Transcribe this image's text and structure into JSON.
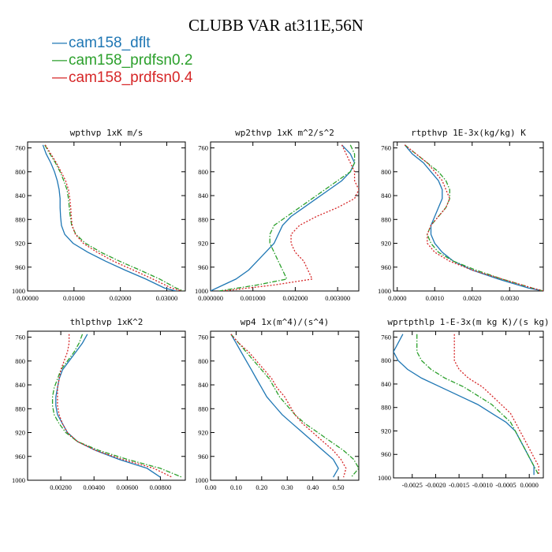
{
  "title": "CLUBB VAR at311E,56N",
  "legend": [
    {
      "label": "cam158_dflt",
      "color": "#1f77b4",
      "dash": "solid"
    },
    {
      "label": "cam158_prdfsn0.2",
      "color": "#2ca02c",
      "dash": "dashdot"
    },
    {
      "label": "cam158_prdfsn0.4",
      "color": "#d62728",
      "dash": "dot"
    }
  ],
  "chart_data": [
    {
      "type": "line",
      "title": "wpthvp  1xK m/s",
      "ylim": [
        1000,
        750
      ],
      "yticks": [
        "760",
        "800",
        "840",
        "880",
        "920",
        "960",
        "1000"
      ],
      "xlim": [
        0,
        0.034
      ],
      "xticks": [
        {
          "v": 0,
          "label": "0.00000"
        },
        {
          "v": 0.01,
          "label": "0.01000"
        },
        {
          "v": 0.02,
          "label": "0.02000"
        },
        {
          "v": 0.03,
          "label": "0.03000"
        }
      ],
      "y": [
        755,
        770,
        785,
        800,
        815,
        830,
        845,
        860,
        875,
        890,
        905,
        920,
        935,
        950,
        965,
        980,
        995,
        1000
      ],
      "series": [
        {
          "name": "cam158_dflt",
          "values": [
            0.0033,
            0.004,
            0.005,
            0.0058,
            0.0064,
            0.0068,
            0.007,
            0.007,
            0.0071,
            0.0073,
            0.008,
            0.0098,
            0.013,
            0.0168,
            0.021,
            0.0255,
            0.0295,
            0.032
          ]
        },
        {
          "name": "cam158_prdfsn0.2",
          "values": [
            0.0037,
            0.0048,
            0.006,
            0.007,
            0.0078,
            0.0085,
            0.0088,
            0.009,
            0.0092,
            0.0095,
            0.0104,
            0.0125,
            0.0158,
            0.0198,
            0.0242,
            0.0285,
            0.032,
            0.0336
          ]
        },
        {
          "name": "cam158_prdfsn0.4",
          "values": [
            0.0038,
            0.005,
            0.0062,
            0.0072,
            0.0082,
            0.0088,
            0.0091,
            0.0093,
            0.0094,
            0.0096,
            0.0103,
            0.012,
            0.015,
            0.0185,
            0.0228,
            0.027,
            0.031,
            0.0333
          ]
        }
      ]
    },
    {
      "type": "line",
      "title": "wp2thvp  1xK m^2/s^2",
      "ylim": [
        1000,
        750
      ],
      "yticks": [
        "760",
        "800",
        "840",
        "880",
        "920",
        "960",
        "1000"
      ],
      "xlim": [
        0,
        0.0035
      ],
      "xticks": [
        {
          "v": 0,
          "label": "0.000000"
        },
        {
          "v": 0.001,
          "label": "0.001000"
        },
        {
          "v": 0.002,
          "label": "0.002000"
        },
        {
          "v": 0.003,
          "label": "0.003000"
        }
      ],
      "y": [
        755,
        770,
        785,
        800,
        815,
        830,
        845,
        860,
        875,
        890,
        905,
        920,
        935,
        950,
        965,
        980,
        990,
        1000
      ],
      "series": [
        {
          "name": "cam158_dflt",
          "values": [
            0.0031,
            0.0033,
            0.0034,
            0.0033,
            0.0031,
            0.0028,
            0.0025,
            0.0022,
            0.0019,
            0.0017,
            0.0016,
            0.0015,
            0.0013,
            0.0011,
            0.0009,
            0.0006,
            0.0003,
            0.0
          ]
        },
        {
          "name": "cam158_prdfsn0.2",
          "values": [
            0.0033,
            0.0034,
            0.0034,
            0.0033,
            0.003,
            0.0027,
            0.0024,
            0.0021,
            0.0018,
            0.0015,
            0.0014,
            0.0014,
            0.0015,
            0.0016,
            0.0017,
            0.0018,
            0.0011,
            0.0002
          ]
        },
        {
          "name": "cam158_prdfsn0.4",
          "values": [
            0.0031,
            0.0032,
            0.0033,
            0.0034,
            0.0034,
            0.0035,
            0.0034,
            0.003,
            0.0025,
            0.0021,
            0.0019,
            0.0019,
            0.002,
            0.0022,
            0.0023,
            0.0024,
            0.0015,
            0.0003
          ]
        }
      ]
    },
    {
      "type": "line",
      "title": "rtpthvp  1E-3x(kg/kg) K",
      "ylim": [
        1000,
        750
      ],
      "yticks": [
        "760",
        "800",
        "840",
        "880",
        "920",
        "960",
        "1000"
      ],
      "xlim": [
        -0.0001,
        0.0039
      ],
      "xticks": [
        {
          "v": 0,
          "label": "0.0000"
        },
        {
          "v": 0.001,
          "label": "0.0010"
        },
        {
          "v": 0.002,
          "label": "0.0020"
        },
        {
          "v": 0.003,
          "label": "0.0030"
        }
      ],
      "y": [
        755,
        770,
        785,
        800,
        815,
        830,
        845,
        860,
        875,
        890,
        905,
        920,
        935,
        950,
        965,
        980,
        995,
        1000
      ],
      "series": [
        {
          "name": "cam158_dflt",
          "values": [
            0.0002,
            0.0004,
            0.0007,
            0.0009,
            0.0011,
            0.0012,
            0.0012,
            0.0011,
            0.001,
            0.0009,
            0.0009,
            0.001,
            0.0012,
            0.0015,
            0.002,
            0.0027,
            0.0035,
            0.0039
          ]
        },
        {
          "name": "cam158_prdfsn0.2",
          "values": [
            0.0002,
            0.0005,
            0.0008,
            0.0011,
            0.0013,
            0.0014,
            0.0014,
            0.0013,
            0.0011,
            0.0009,
            0.0008,
            0.0009,
            0.0011,
            0.0015,
            0.0021,
            0.0028,
            0.0036,
            0.0039
          ]
        },
        {
          "name": "cam158_prdfsn0.4",
          "values": [
            0.0002,
            0.0005,
            0.0008,
            0.001,
            0.0012,
            0.0013,
            0.0014,
            0.0013,
            0.0011,
            0.0009,
            0.0008,
            0.0008,
            0.001,
            0.0014,
            0.002,
            0.0028,
            0.0036,
            0.0039
          ]
        }
      ]
    },
    {
      "type": "line",
      "title": "thlpthvp  1xK^2",
      "ylim": [
        1000,
        750
      ],
      "yticks": [
        "760",
        "800",
        "840",
        "880",
        "920",
        "960",
        "1000"
      ],
      "xlim": [
        0,
        0.0095
      ],
      "xticks": [
        {
          "v": 0.002,
          "label": "0.00200"
        },
        {
          "v": 0.004,
          "label": "0.00400"
        },
        {
          "v": 0.006,
          "label": "0.00600"
        },
        {
          "v": 0.008,
          "label": "0.00800"
        }
      ],
      "y": [
        755,
        770,
        785,
        800,
        815,
        830,
        845,
        860,
        875,
        890,
        905,
        920,
        935,
        950,
        965,
        980,
        995
      ],
      "series": [
        {
          "name": "cam158_dflt",
          "values": [
            0.0036,
            0.0033,
            0.0029,
            0.0025,
            0.0021,
            0.0019,
            0.0018,
            0.0017,
            0.0017,
            0.0018,
            0.0021,
            0.0024,
            0.003,
            0.0041,
            0.0055,
            0.0072,
            0.008
          ]
        },
        {
          "name": "cam158_prdfsn0.2",
          "values": [
            0.0033,
            0.0031,
            0.0028,
            0.0024,
            0.002,
            0.0018,
            0.0016,
            0.0015,
            0.0015,
            0.0016,
            0.0019,
            0.0023,
            0.003,
            0.0043,
            0.006,
            0.008,
            0.0093
          ]
        },
        {
          "name": "cam158_prdfsn0.4",
          "values": [
            0.0025,
            0.0025,
            0.0024,
            0.0022,
            0.002,
            0.0019,
            0.0018,
            0.0018,
            0.0018,
            0.0019,
            0.0021,
            0.0024,
            0.003,
            0.0041,
            0.0057,
            0.0076,
            0.0087
          ]
        }
      ]
    },
    {
      "type": "line",
      "title": "wp4  1x(m^4)/(s^4)",
      "ylim": [
        1000,
        750
      ],
      "yticks": [
        "760",
        "800",
        "840",
        "880",
        "920",
        "960",
        "1000"
      ],
      "xlim": [
        0,
        0.58
      ],
      "xticks": [
        {
          "v": 0,
          "label": "0.00"
        },
        {
          "v": 0.1,
          "label": "0.10"
        },
        {
          "v": 0.2,
          "label": "0.20"
        },
        {
          "v": 0.3,
          "label": "0.30"
        },
        {
          "v": 0.4,
          "label": "0.40"
        },
        {
          "v": 0.5,
          "label": "0.50"
        }
      ],
      "y": [
        755,
        770,
        785,
        800,
        815,
        830,
        845,
        860,
        875,
        890,
        905,
        920,
        935,
        950,
        965,
        980,
        995
      ],
      "series": [
        {
          "name": "cam158_dflt",
          "values": [
            0.08,
            0.1,
            0.12,
            0.14,
            0.16,
            0.18,
            0.2,
            0.22,
            0.25,
            0.28,
            0.32,
            0.36,
            0.4,
            0.44,
            0.48,
            0.5,
            0.48
          ]
        },
        {
          "name": "cam158_prdfsn0.2",
          "values": [
            0.08,
            0.11,
            0.14,
            0.17,
            0.2,
            0.23,
            0.25,
            0.27,
            0.3,
            0.33,
            0.37,
            0.42,
            0.47,
            0.52,
            0.56,
            0.58,
            0.55
          ]
        },
        {
          "name": "cam158_prdfsn0.4",
          "values": [
            0.08,
            0.11,
            0.15,
            0.18,
            0.21,
            0.24,
            0.26,
            0.29,
            0.31,
            0.33,
            0.36,
            0.4,
            0.44,
            0.48,
            0.51,
            0.53,
            0.52
          ]
        }
      ]
    },
    {
      "type": "line",
      "title": "wprtpthlp  1-E-3x(m kg K)/(s kg)",
      "ylim": [
        1000,
        750
      ],
      "yticks": [
        "760",
        "800",
        "840",
        "880",
        "920",
        "960",
        "1000"
      ],
      "xlim": [
        -0.0029,
        0.0003
      ],
      "xticks": [
        {
          "v": -0.0025,
          "label": "-0.0025"
        },
        {
          "v": -0.002,
          "label": "-0.0020"
        },
        {
          "v": -0.0015,
          "label": "-0.0015"
        },
        {
          "v": -0.001,
          "label": "-0.0010"
        },
        {
          "v": -0.0005,
          "label": "-0.0005"
        },
        {
          "v": 0,
          "label": "0.0000"
        }
      ],
      "y": [
        755,
        770,
        785,
        800,
        815,
        830,
        845,
        860,
        875,
        890,
        905,
        920,
        935,
        950,
        965,
        980,
        995
      ],
      "series": [
        {
          "name": "cam158_dflt",
          "values": [
            -0.0027,
            -0.0028,
            -0.0029,
            -0.0028,
            -0.0026,
            -0.0023,
            -0.0019,
            -0.0015,
            -0.0011,
            -0.0008,
            -0.0005,
            -0.0003,
            -0.0002,
            -0.0001,
            0.0,
            0.0001,
            0.0001
          ]
        },
        {
          "name": "cam158_prdfsn0.2",
          "values": [
            -0.0024,
            -0.0024,
            -0.0024,
            -0.0023,
            -0.0021,
            -0.0018,
            -0.0014,
            -0.0011,
            -0.0008,
            -0.0006,
            -0.0004,
            -0.0003,
            -0.0002,
            -0.0001,
            0.0,
            0.0001,
            0.0002
          ]
        },
        {
          "name": "cam158_prdfsn0.4",
          "values": [
            -0.0016,
            -0.0016,
            -0.0016,
            -0.0016,
            -0.0015,
            -0.0013,
            -0.001,
            -0.0008,
            -0.0006,
            -0.0004,
            -0.0003,
            -0.0002,
            -0.0001,
            0.0,
            0.0001,
            0.0002,
            0.0002
          ]
        }
      ]
    }
  ]
}
